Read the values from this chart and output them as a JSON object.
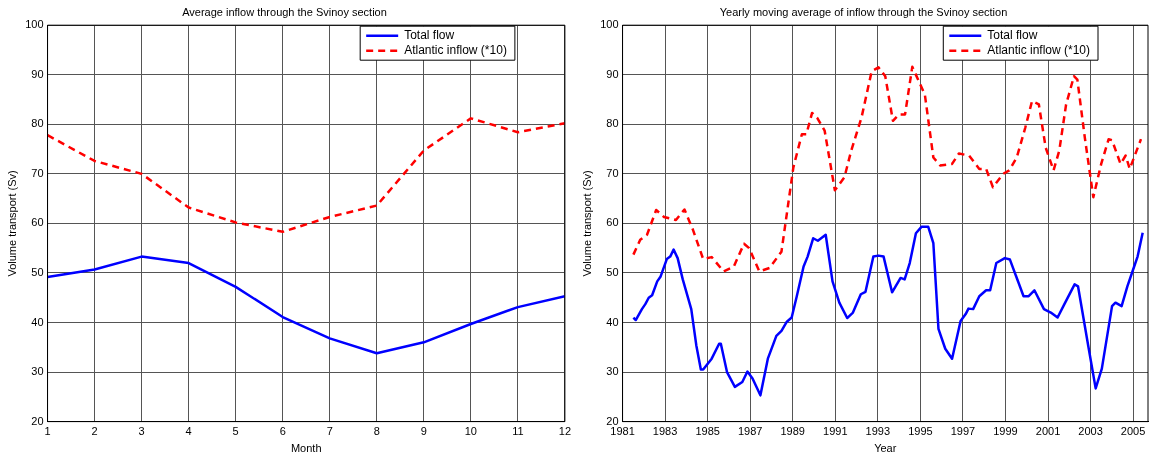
{
  "chart_data": [
    {
      "type": "line",
      "title": "Average inflow through the Svinoy section",
      "xlabel": "Month",
      "ylabel": "Volume transport (Sv)",
      "x": [
        1,
        2,
        3,
        4,
        5,
        6,
        7,
        8,
        9,
        10,
        11,
        12
      ],
      "xlim": [
        1,
        12
      ],
      "xticks": [
        1,
        2,
        3,
        4,
        5,
        6,
        7,
        8,
        9,
        10,
        11,
        12
      ],
      "ylim": [
        20,
        100
      ],
      "yticks": [
        20,
        30,
        40,
        50,
        60,
        70,
        80,
        90,
        100
      ],
      "grid": true,
      "legend": "top right",
      "marker": "none",
      "series": [
        {
          "name": "Total flow",
          "color": "#0000ff",
          "line_style": "solid",
          "values": [
            49.2,
            50.7,
            53.3,
            52,
            47.2,
            41.1,
            36.8,
            33.8,
            36,
            39.7,
            43.1,
            45.3
          ]
        },
        {
          "name": "Atlantic inflow (*10)",
          "color": "#ff0000",
          "line_style": "dashed",
          "values": [
            77.8,
            72.6,
            70,
            63.2,
            60.2,
            58.3,
            61.3,
            63.6,
            74.7,
            81.2,
            78.4,
            80.2
          ]
        }
      ]
    },
    {
      "type": "line",
      "title": "Yearly moving average of inflow through the Svinoy section",
      "xlabel": "Year",
      "ylabel": "Volume transport (Sv)",
      "xlim": [
        1981,
        2005.7
      ],
      "xticks": [
        1981,
        1983,
        1985,
        1987,
        1989,
        1991,
        1993,
        1995,
        1997,
        1999,
        2001,
        2003,
        2005
      ],
      "ylim": [
        20,
        100
      ],
      "yticks": [
        20,
        30,
        40,
        50,
        60,
        70,
        80,
        90,
        100
      ],
      "grid": true,
      "legend": "top right",
      "marker": "none",
      "series": [
        {
          "name": "Total flow",
          "color": "#0000ff",
          "line_style": "solid",
          "x": [
            1981.51,
            1981.62,
            1981.91,
            1982.07,
            1982.23,
            1982.39,
            1982.63,
            1982.79,
            1983.08,
            1983.24,
            1983.4,
            1983.59,
            1983.83,
            1984.23,
            1984.47,
            1984.68,
            1984.79,
            1985.19,
            1985.54,
            1985.62,
            1985.91,
            1986.28,
            1986.63,
            1986.87,
            1987.11,
            1987.48,
            1987.83,
            1988.23,
            1988.47,
            1988.71,
            1988.95,
            1989.19,
            1989.51,
            1989.7,
            1989.96,
            1990.18,
            1990.55,
            1990.87,
            1991.19,
            1991.56,
            1991.83,
            1992.2,
            1992.42,
            1992.79,
            1993.03,
            1993.27,
            1993.67,
            1994.07,
            1994.26,
            1994.5,
            1994.79,
            1995.05,
            1995.37,
            1995.61,
            1995.85,
            1996.17,
            1996.49,
            1996.89,
            1997.13,
            1997.26,
            1997.48,
            1997.77,
            1998.09,
            1998.28,
            1998.57,
            1998.97,
            1999.21,
            1999.85,
            2000.09,
            2000.36,
            2000.81,
            2001.13,
            2001.45,
            2001.77,
            2002.25,
            2002.41,
            2002.89,
            2003.24,
            2003.53,
            2004.01,
            2004.17,
            2004.46,
            2004.73,
            2005.05,
            2005.21,
            2005.45
          ],
          "values": [
            41,
            40.5,
            42.7,
            43.7,
            45,
            45.5,
            48.3,
            49.3,
            52.8,
            53.3,
            54.7,
            53,
            48.7,
            42.7,
            35.3,
            30.5,
            30.5,
            32.7,
            35.7,
            35.7,
            30,
            27,
            28,
            30.1,
            28.7,
            25.3,
            32.7,
            37.3,
            38.3,
            40.1,
            41,
            45.3,
            51.3,
            53.3,
            57,
            56.5,
            57.7,
            48.3,
            44,
            40.9,
            42,
            45.7,
            46.2,
            53.3,
            53.5,
            53.3,
            46.1,
            49,
            48.7,
            52,
            58,
            59.3,
            59.3,
            56,
            38.7,
            34.7,
            32.7,
            40.3,
            41.7,
            42.8,
            42.7,
            45.3,
            46.5,
            46.5,
            52,
            53,
            52.7,
            45.3,
            45.3,
            46.5,
            42.7,
            42,
            41,
            43.7,
            47.7,
            47.3,
            35.3,
            26.7,
            30.7,
            43.3,
            44,
            43.3,
            47.3,
            51.3,
            53.3,
            58.1
          ]
        },
        {
          "name": "Atlantic inflow (*10)",
          "color": "#ff0000",
          "line_style": "dashed",
          "x": [
            1981.51,
            1981.83,
            1982.15,
            1982.58,
            1982.95,
            1983.51,
            1983.91,
            1984.31,
            1984.79,
            1985.19,
            1985.75,
            1986.23,
            1986.71,
            1986.95,
            1987.43,
            1987.91,
            1988.47,
            1989.03,
            1989.43,
            1989.64,
            1989.91,
            1990.15,
            1990.5,
            1990.98,
            1991.43,
            1991.75,
            1992.23,
            1992.71,
            1993.03,
            1993.35,
            1993.71,
            1993.99,
            1994.28,
            1994.62,
            1995.21,
            1995.61,
            1995.93,
            1996.49,
            1996.81,
            1997.29,
            1997.77,
            1998.09,
            1998.41,
            1998.89,
            1999.18,
            1999.53,
            1999.93,
            2000.25,
            2000.57,
            2000.89,
            2001.26,
            2001.53,
            2001.85,
            2002.22,
            2002.38,
            2002.73,
            2003.13,
            2003.5,
            2003.85,
            2004.01,
            2004.41,
            2004.65,
            2004.84,
            2005.37
          ],
          "values": [
            53.7,
            56.7,
            57.7,
            62.7,
            61.3,
            60.7,
            62.8,
            58.7,
            52.8,
            53.2,
            50.3,
            51.3,
            55.9,
            55,
            50.3,
            51,
            54.3,
            71.3,
            78,
            78,
            82.3,
            81.3,
            78.7,
            66.7,
            69.3,
            74.7,
            81.3,
            90.7,
            91.5,
            89.7,
            80.7,
            82,
            82,
            91.6,
            86,
            73.3,
            71.7,
            72,
            74.1,
            73.7,
            71,
            71,
            67.3,
            70,
            70.7,
            73.3,
            79.3,
            84.7,
            84,
            75.3,
            70.7,
            74.7,
            84,
            89.7,
            89,
            77.3,
            65.3,
            72,
            77,
            76.8,
            72,
            73.7,
            71,
            77
          ]
        }
      ]
    }
  ]
}
